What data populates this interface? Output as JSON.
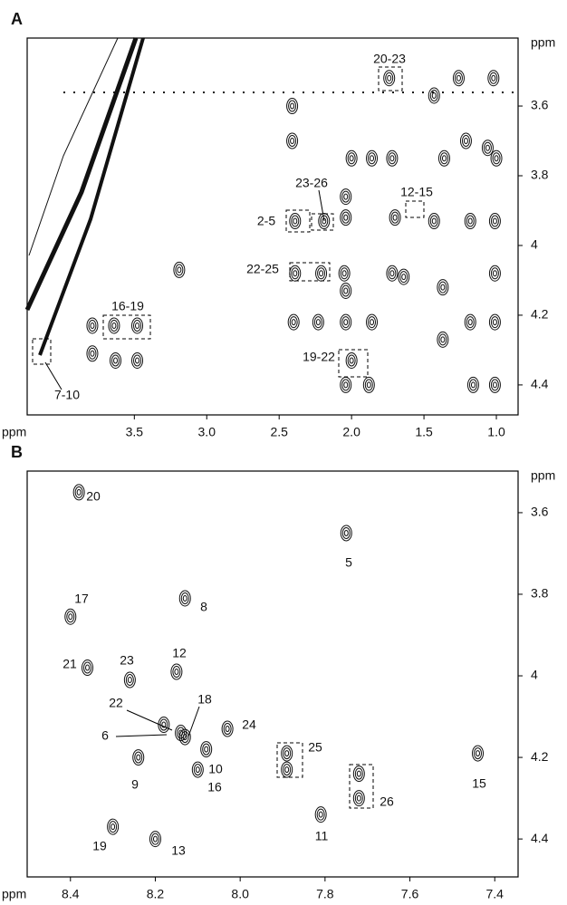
{
  "chart_data": [
    {
      "type": "contour",
      "panel_label": "A",
      "x_label": "ppm",
      "y_label": "ppm",
      "xlim": [
        4.24,
        0.85
      ],
      "xticks": [
        {
          "value": 3.5,
          "label": "3.5"
        },
        {
          "value": 3.0,
          "label": "3.0"
        },
        {
          "value": 2.5,
          "label": "2.5"
        },
        {
          "value": 2.0,
          "label": "2.0"
        },
        {
          "value": 1.5,
          "label": "1.5"
        },
        {
          "value": 1.0,
          "label": "1.0"
        }
      ],
      "ylim": [
        3.405,
        4.486
      ],
      "yticks": [
        3.6,
        3.8,
        4.0,
        4.2,
        4.4
      ],
      "x": [
        1.74,
        1.26,
        1.02,
        2.41,
        1.43,
        2.41,
        2.0,
        1.86,
        1.72,
        1.36,
        1.21,
        1.06,
        1.0,
        2.04,
        2.04,
        1.7,
        2.39,
        2.19,
        1.43,
        1.18,
        1.01,
        2.05,
        2.04,
        1.72,
        1.64,
        1.37,
        1.01,
        3.19,
        2.39,
        2.21,
        2.4,
        2.23,
        2.04,
        1.86,
        1.37,
        1.18,
        1.01,
        2.0,
        2.04,
        1.88,
        1.16,
        1.01,
        3.79,
        3.64,
        3.48,
        3.79,
        3.63,
        3.48
      ],
      "y": [
        3.52,
        3.52,
        3.52,
        3.6,
        3.57,
        3.7,
        3.75,
        3.75,
        3.75,
        3.75,
        3.7,
        3.72,
        3.75,
        3.86,
        3.92,
        3.92,
        3.93,
        3.93,
        3.93,
        3.93,
        3.93,
        4.08,
        4.13,
        4.08,
        4.09,
        4.12,
        4.08,
        4.07,
        4.08,
        4.08,
        4.22,
        4.22,
        4.22,
        4.22,
        4.27,
        4.22,
        4.22,
        4.33,
        4.4,
        4.4,
        4.4,
        4.4,
        4.23,
        4.23,
        4.23,
        4.31,
        4.33,
        4.33
      ],
      "annotations": [
        "20-23",
        "23-26",
        "12-15",
        "2-5",
        "22-25",
        "16-19",
        "19-22",
        "7-10"
      ]
    },
    {
      "type": "contour",
      "panel_label": "B",
      "x_label": "ppm",
      "y_label": "ppm",
      "xlim": [
        8.502,
        7.345
      ],
      "xticks": [
        {
          "value": 8.4,
          "label": "8.4"
        },
        {
          "value": 8.2,
          "label": "8.2"
        },
        {
          "value": 8.0,
          "label": "8.0"
        },
        {
          "value": 7.8,
          "label": "7.8"
        },
        {
          "value": 7.6,
          "label": "7.6"
        },
        {
          "value": 7.4,
          "label": "7.4"
        }
      ],
      "ylim": [
        3.498,
        4.493
      ],
      "yticks": [
        3.6,
        3.8,
        4.0,
        4.2,
        4.4
      ],
      "x": [
        8.38,
        7.75,
        8.4,
        8.13,
        8.36,
        8.26,
        8.15,
        8.18,
        8.14,
        8.13,
        8.03,
        7.89,
        7.89,
        8.08,
        8.24,
        8.1,
        7.72,
        7.72,
        7.44,
        7.81,
        8.3,
        8.2
      ],
      "y": [
        3.55,
        3.65,
        3.855,
        3.81,
        3.98,
        4.01,
        3.99,
        4.12,
        4.14,
        4.15,
        4.13,
        4.19,
        4.23,
        4.18,
        4.2,
        4.23,
        4.24,
        4.3,
        4.19,
        4.34,
        4.37,
        4.4
      ],
      "annotations": [
        "20",
        "5",
        "17",
        "8",
        "21",
        "12",
        "23",
        "22",
        "18",
        "6",
        "24",
        "25",
        "10",
        "9",
        "16",
        "26",
        "15",
        "11",
        "19",
        "13"
      ]
    }
  ]
}
